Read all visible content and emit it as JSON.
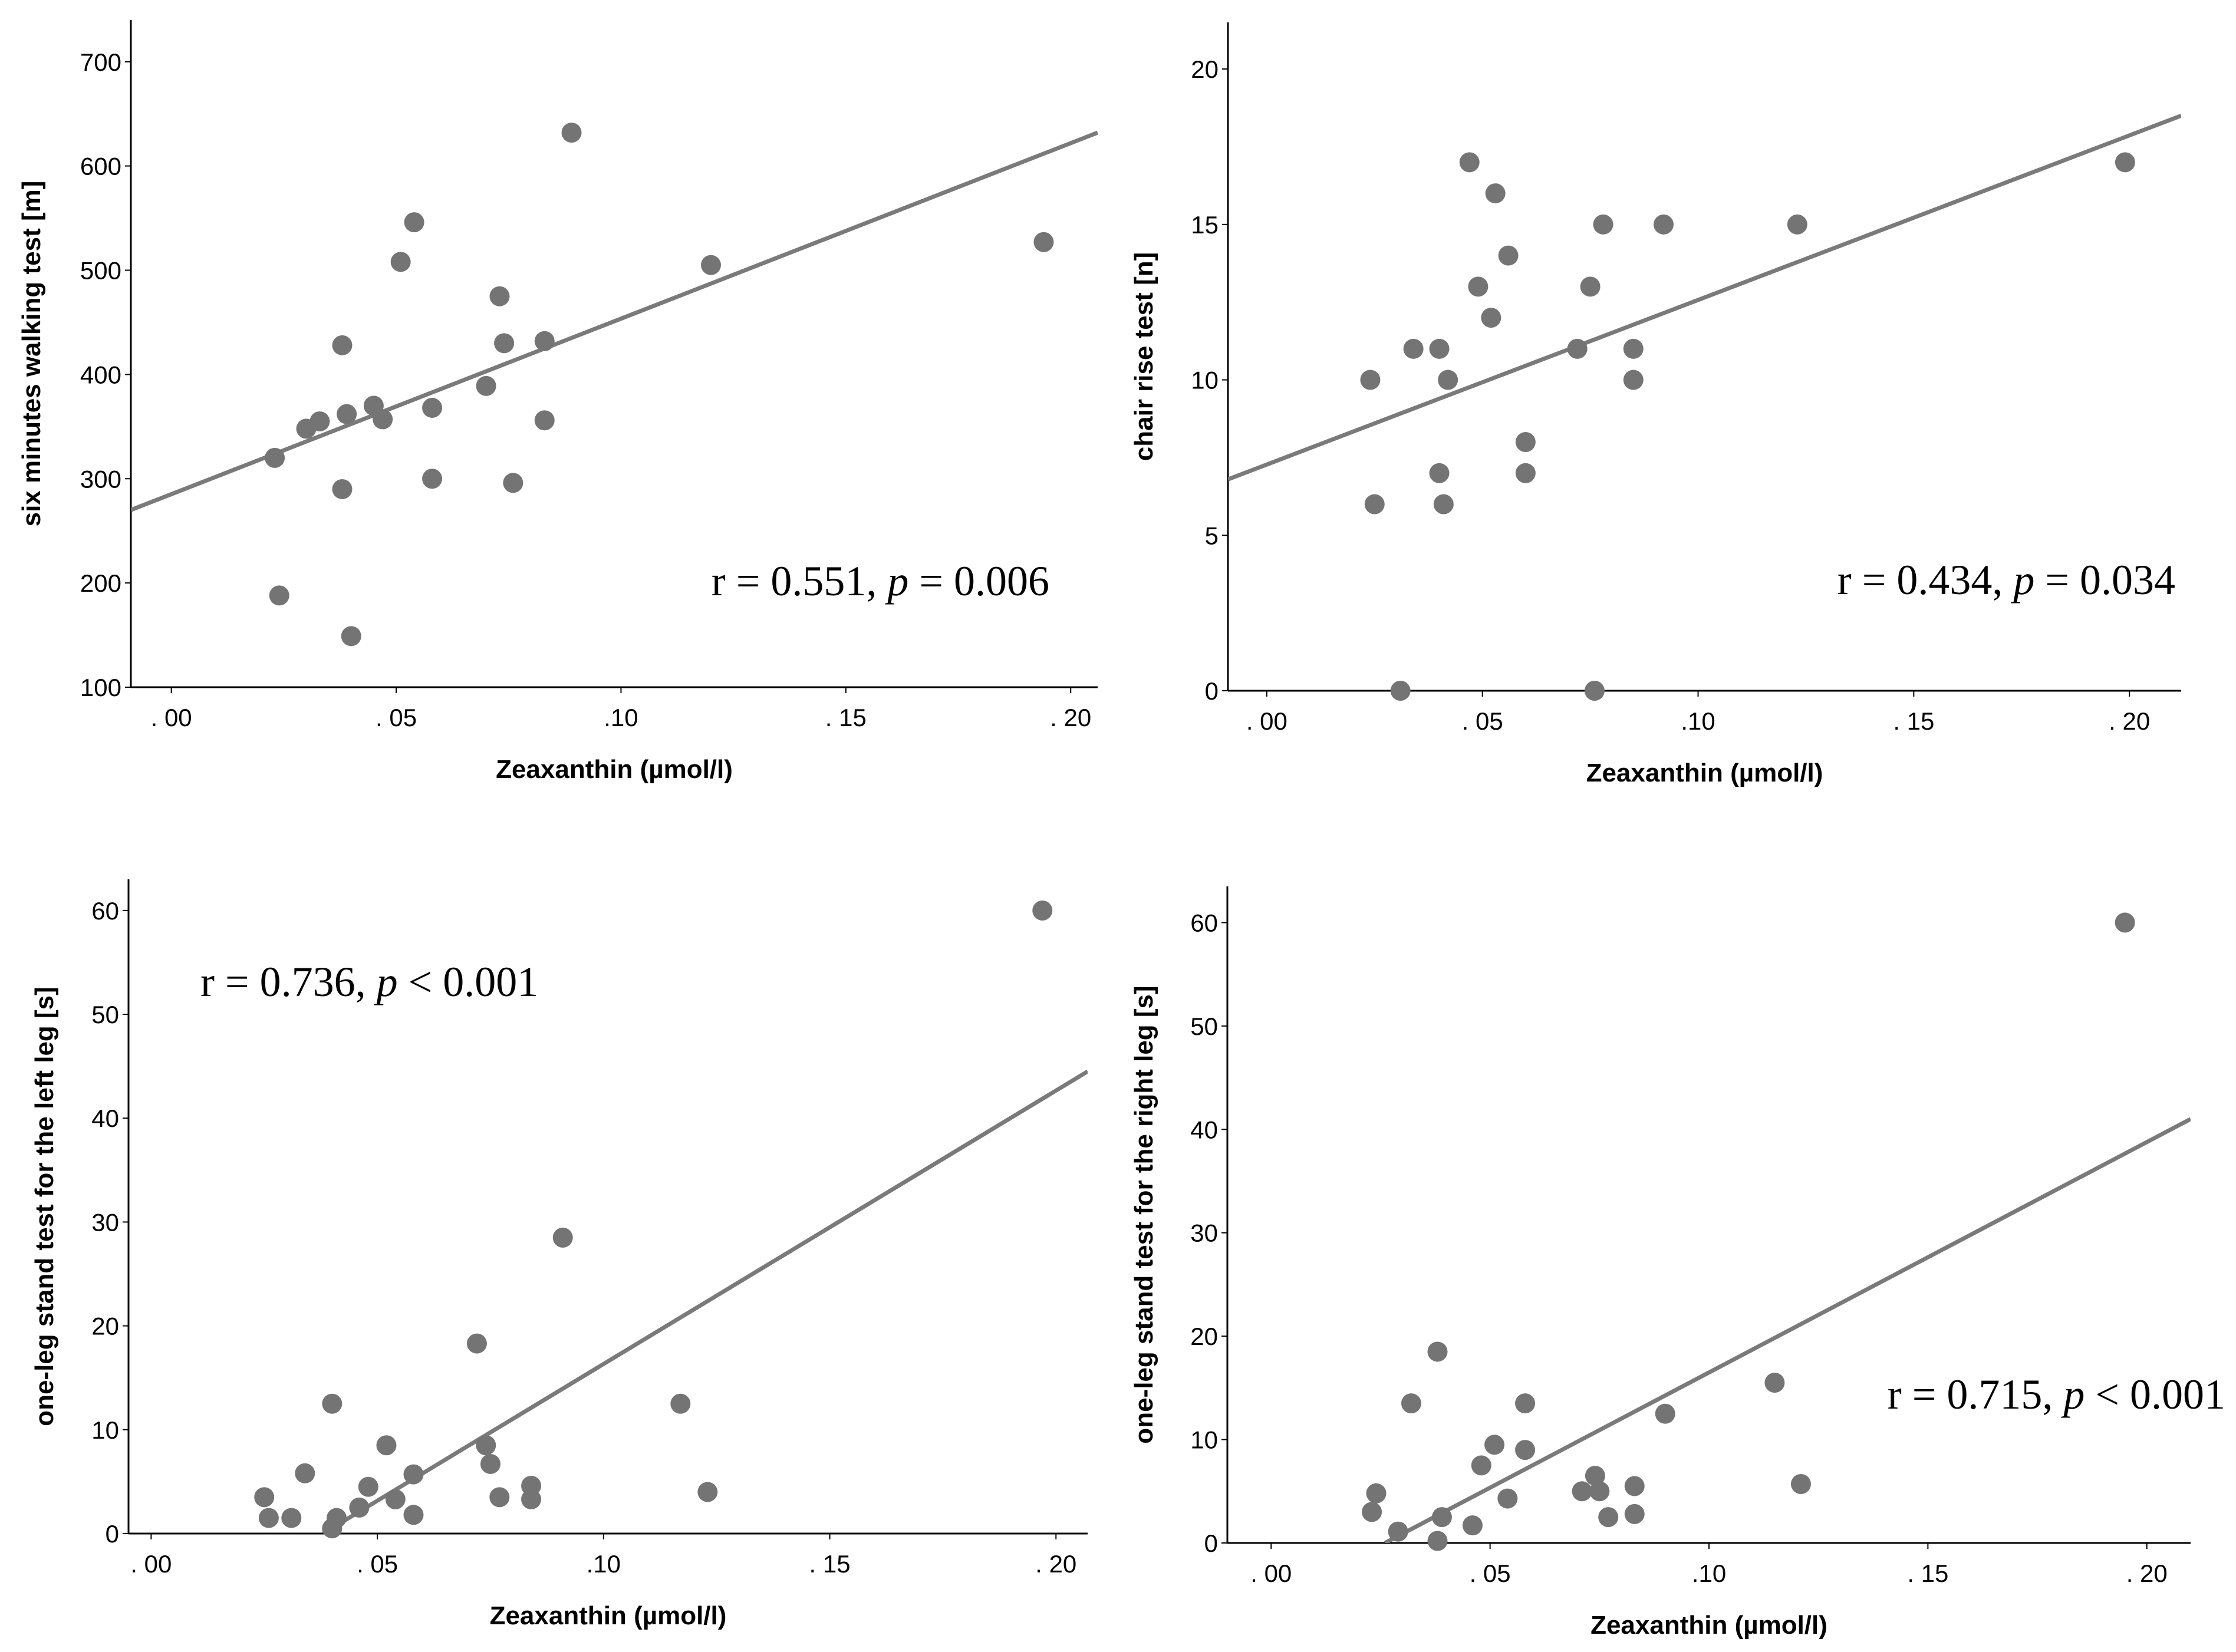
{
  "colors": {
    "point": "#747474",
    "line": "#7a7a7a",
    "axis": "#000000"
  },
  "chart_data": [
    {
      "type": "scatter",
      "id": "walk",
      "xlabel": "Zeaxanthin (µmol/l)",
      "ylabel": "six minutes walking test [m]",
      "xlim": [
        -0.009,
        0.206
      ],
      "ylim": [
        100,
        740
      ],
      "xticks": [
        0,
        0.05,
        0.1,
        0.15,
        0.2
      ],
      "xtick_labels": [
        ". 00",
        ". 05",
        ".10",
        ". 15",
        ". 20"
      ],
      "yticks": [
        100,
        200,
        300,
        400,
        500,
        600,
        700
      ],
      "ytick_labels": [
        "100",
        "200",
        "300",
        "400",
        "500",
        "600",
        "700"
      ],
      "annotation": {
        "r": "r = 0.551, ",
        "p_label": "p",
        "p_value": " = 0.006",
        "position": "bottom-right"
      },
      "fit_line": {
        "x1": -0.009,
        "y1": 270,
        "x2": 0.206,
        "y2": 632
      },
      "points": [
        [
          0.023,
          320
        ],
        [
          0.024,
          188
        ],
        [
          0.03,
          348
        ],
        [
          0.033,
          355
        ],
        [
          0.038,
          290
        ],
        [
          0.038,
          428
        ],
        [
          0.039,
          362
        ],
        [
          0.04,
          149
        ],
        [
          0.045,
          370
        ],
        [
          0.047,
          357
        ],
        [
          0.051,
          508
        ],
        [
          0.054,
          546
        ],
        [
          0.058,
          300
        ],
        [
          0.058,
          368
        ],
        [
          0.07,
          389
        ],
        [
          0.073,
          475
        ],
        [
          0.074,
          430
        ],
        [
          0.076,
          296
        ],
        [
          0.083,
          432
        ],
        [
          0.083,
          356
        ],
        [
          0.089,
          632
        ],
        [
          0.12,
          505
        ],
        [
          0.194,
          527
        ]
      ]
    },
    {
      "type": "scatter",
      "id": "chair",
      "xlabel": "Zeaxanthin (µmol/l)",
      "ylabel": "chair rise test [n]",
      "xlim": [
        -0.009,
        0.212
      ],
      "ylim": [
        0,
        21.5
      ],
      "xticks": [
        0,
        0.05,
        0.1,
        0.15,
        0.2
      ],
      "xtick_labels": [
        ". 00",
        ". 05",
        ".10",
        ". 15",
        ". 20"
      ],
      "yticks": [
        0,
        5,
        10,
        15,
        20
      ],
      "ytick_labels": [
        "0",
        "5",
        "10",
        "15",
        "20"
      ],
      "annotation": {
        "r": "r = 0.434, ",
        "p_label": "p",
        "p_value": " = 0.034",
        "position": "bottom-right"
      },
      "fit_line": {
        "x1": -0.009,
        "y1": 6.8,
        "x2": 0.212,
        "y2": 18.5
      },
      "points": [
        [
          0.024,
          10
        ],
        [
          0.025,
          6
        ],
        [
          0.031,
          0
        ],
        [
          0.034,
          11
        ],
        [
          0.04,
          11
        ],
        [
          0.04,
          7
        ],
        [
          0.041,
          6
        ],
        [
          0.042,
          10
        ],
        [
          0.047,
          17
        ],
        [
          0.049,
          13
        ],
        [
          0.052,
          12
        ],
        [
          0.053,
          16
        ],
        [
          0.056,
          14
        ],
        [
          0.06,
          8
        ],
        [
          0.06,
          7
        ],
        [
          0.072,
          11
        ],
        [
          0.075,
          13
        ],
        [
          0.076,
          0
        ],
        [
          0.078,
          15
        ],
        [
          0.085,
          11
        ],
        [
          0.085,
          10
        ],
        [
          0.092,
          15
        ],
        [
          0.123,
          15
        ],
        [
          0.199,
          17
        ]
      ]
    },
    {
      "type": "scatter",
      "id": "left-leg",
      "xlabel": "Zeaxanthin (µmol/l)",
      "ylabel": "one-leg stand test for the left leg [s]",
      "xlim": [
        -0.005,
        0.207
      ],
      "ylim": [
        0,
        63
      ],
      "xticks": [
        0,
        0.05,
        0.1,
        0.15,
        0.2
      ],
      "xtick_labels": [
        ". 00",
        ". 05",
        ".10",
        ". 15",
        ". 20"
      ],
      "yticks": [
        0,
        10,
        20,
        30,
        40,
        50,
        60
      ],
      "ytick_labels": [
        "0",
        "10",
        "20",
        "30",
        "40",
        "50",
        "60"
      ],
      "annotation": {
        "r": "r = 0.736, ",
        "p_label": "p",
        "p_value": " < 0.001",
        "position": "top-left"
      },
      "fit_line": {
        "x1": 0.038,
        "y1": 0,
        "x2": 0.207,
        "y2": 44.5
      },
      "points": [
        [
          0.025,
          3.5
        ],
        [
          0.026,
          1.5
        ],
        [
          0.031,
          1.5
        ],
        [
          0.034,
          5.8
        ],
        [
          0.04,
          12.5
        ],
        [
          0.04,
          0.5
        ],
        [
          0.041,
          1.5
        ],
        [
          0.046,
          2.5
        ],
        [
          0.048,
          4.5
        ],
        [
          0.052,
          8.5
        ],
        [
          0.054,
          3.3
        ],
        [
          0.058,
          1.8
        ],
        [
          0.058,
          5.7
        ],
        [
          0.072,
          18.3
        ],
        [
          0.074,
          8.5
        ],
        [
          0.075,
          6.7
        ],
        [
          0.077,
          3.5
        ],
        [
          0.084,
          3.3
        ],
        [
          0.084,
          4.6
        ],
        [
          0.091,
          28.5
        ],
        [
          0.117,
          12.5
        ],
        [
          0.123,
          4
        ],
        [
          0.197,
          60
        ]
      ]
    },
    {
      "type": "scatter",
      "id": "right-leg",
      "xlabel": "Zeaxanthin (µmol/l)",
      "ylabel": "one-leg stand test for the right leg [s]",
      "xlim": [
        -0.01,
        0.21
      ],
      "ylim": [
        0,
        63.5
      ],
      "xticks": [
        0,
        0.05,
        0.1,
        0.15,
        0.2
      ],
      "xtick_labels": [
        ". 00",
        ". 05",
        ".10",
        ". 15",
        ". 20"
      ],
      "yticks": [
        0,
        10,
        20,
        30,
        40,
        50,
        60
      ],
      "ytick_labels": [
        "0",
        "10",
        "20",
        "30",
        "40",
        "50",
        "60"
      ],
      "annotation": {
        "r": "r = 0.715, ",
        "p_label": "p",
        "p_value": " < 0.001",
        "position": "right"
      },
      "fit_line": {
        "x1": 0.026,
        "y1": 0,
        "x2": 0.21,
        "y2": 41
      },
      "points": [
        [
          0.023,
          3
        ],
        [
          0.024,
          4.8
        ],
        [
          0.029,
          1.1
        ],
        [
          0.032,
          13.5
        ],
        [
          0.038,
          18.5
        ],
        [
          0.038,
          0.2
        ],
        [
          0.039,
          2.5
        ],
        [
          0.046,
          1.7
        ],
        [
          0.048,
          7.5
        ],
        [
          0.051,
          9.5
        ],
        [
          0.054,
          4.3
        ],
        [
          0.058,
          9
        ],
        [
          0.058,
          13.5
        ],
        [
          0.071,
          5
        ],
        [
          0.074,
          6.5
        ],
        [
          0.075,
          5
        ],
        [
          0.077,
          2.5
        ],
        [
          0.083,
          5.5
        ],
        [
          0.083,
          2.8
        ],
        [
          0.09,
          12.5
        ],
        [
          0.115,
          15.5
        ],
        [
          0.121,
          5.7
        ],
        [
          0.195,
          60
        ]
      ]
    }
  ]
}
